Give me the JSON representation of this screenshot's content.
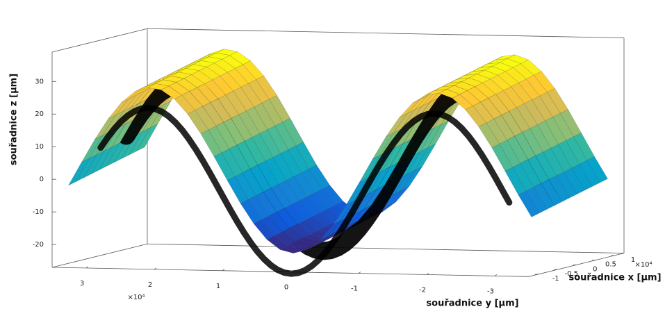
{
  "chart_data": {
    "type": "surface",
    "xlabel": "souřadnice x [µm]",
    "ylabel": "souřadnice y [µm]",
    "zlabel": "souřadnice z [µm]",
    "x_multiplier": "×10⁴",
    "y_multiplier": "×10⁴",
    "xlim": [
      -1.25,
      1.25
    ],
    "ylim": [
      -3.5,
      3.5
    ],
    "zlim": [
      -27,
      39
    ],
    "xticks": [
      -1,
      -0.5,
      0,
      0.5,
      1
    ],
    "yticks": [
      -3,
      -2,
      -1,
      0,
      1,
      2,
      3
    ],
    "zticks": [
      -20,
      -10,
      0,
      10,
      20,
      30
    ],
    "colormap": "parula",
    "scatter_color": "#000000"
  }
}
